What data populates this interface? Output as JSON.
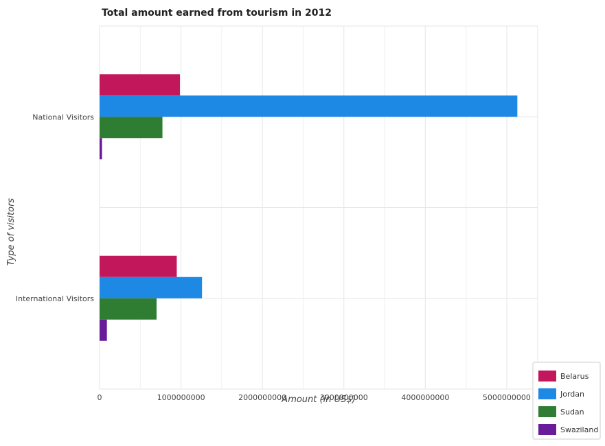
{
  "chart_data": {
    "type": "bar",
    "orientation": "horizontal",
    "title": "Total amount earned from tourism in 2012",
    "xlabel": "Amount (in US$)",
    "ylabel": "Type of visitors",
    "categories": [
      "National Visitors",
      "International Visitors"
    ],
    "series": [
      {
        "name": "Belarus",
        "color": "#c2185b",
        "values": [
          987000000,
          948000000
        ]
      },
      {
        "name": "Jordan",
        "color": "#1e88e5",
        "values": [
          5130000000,
          1258000000
        ]
      },
      {
        "name": "Sudan",
        "color": "#2e7d32",
        "values": [
          772000000,
          700000000
        ]
      },
      {
        "name": "Swaziland",
        "color": "#6a1b9a",
        "values": [
          30000000,
          90000000
        ]
      }
    ],
    "xticks": [
      0,
      1000000000,
      2000000000,
      3000000000,
      4000000000,
      5000000000
    ],
    "xtick_labels": [
      "0",
      "1000000000",
      "2000000000",
      "3000000000",
      "4000000000",
      "5000000000"
    ],
    "xlim": [
      0,
      5380000000
    ],
    "grid": true,
    "legend_position": "bottom-right"
  }
}
